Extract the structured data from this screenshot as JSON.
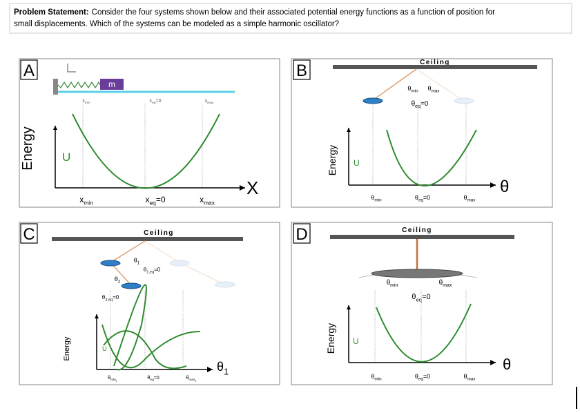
{
  "problem": {
    "lead": "Problem Statement:",
    "line1": "Consider the four systems shown below and their associated potential energy functions as a function of position for",
    "line2": "small displacements. Which of the systems can be modeled as a simple harmonic oscillator?"
  },
  "panels": [
    {
      "letter": "A",
      "mass": "m",
      "energy_axis": "Energy",
      "curve": "U",
      "position_axis": {
        "symbol": "X"
      },
      "diagram_labels": [
        {
          "symbol": "x",
          "sub": "min"
        },
        {
          "symbol": "x",
          "sub": "eq",
          "rest": "=0"
        },
        {
          "symbol": "x",
          "sub": "max"
        }
      ],
      "axis_labels": [
        {
          "symbol": "x",
          "sub": "min"
        },
        {
          "symbol": "x",
          "sub": "eq",
          "rest": "=0"
        },
        {
          "symbol": "x",
          "sub": "max"
        }
      ]
    },
    {
      "letter": "B",
      "ceiling": "Ceiling",
      "energy_axis": "Energy",
      "curve": "U",
      "position_axis": {
        "symbol": "θ"
      },
      "diagram_labels": [
        {
          "symbol": "θ",
          "sub": "min"
        },
        {
          "symbol": "θ",
          "sub": "max"
        },
        {
          "symbol": "θ",
          "sub": "eq",
          "rest": "=0"
        }
      ],
      "axis_labels": [
        {
          "symbol": "θ",
          "sub": "min"
        },
        {
          "symbol": "θ",
          "sub": "eq",
          "rest": "=0"
        },
        {
          "symbol": "θ",
          "sub": "max"
        }
      ]
    },
    {
      "letter": "C",
      "ceiling": "Ceiling",
      "energy_axis": "Energy",
      "curve": "U",
      "position_axis": {
        "symbol": "θ",
        "sub": "1"
      },
      "diagram_labels": [
        {
          "symbol": "θ",
          "sub": "1"
        },
        {
          "symbol": "θ",
          "sub": "1,eq",
          "rest": "=0"
        },
        {
          "symbol": "θ",
          "sub": "2"
        },
        {
          "symbol": "θ",
          "sub": "2,eq",
          "rest": "=0"
        }
      ],
      "axis_labels": [
        {
          "symbol": "θ",
          "sub": "min",
          "sub2": "1"
        },
        {
          "symbol": "θ",
          "sub": "eq",
          "rest": "=0"
        },
        {
          "symbol": "θ",
          "sub": "max",
          "sub2": "1"
        }
      ]
    },
    {
      "letter": "D",
      "ceiling": "Ceiling",
      "energy_axis": "Energy",
      "curve": "U",
      "position_axis": {
        "symbol": "θ"
      },
      "diagram_labels": [
        {
          "symbol": "θ",
          "sub": "min"
        },
        {
          "symbol": "θ",
          "sub": "max"
        },
        {
          "symbol": "θ",
          "sub": "eq",
          "rest": "=0"
        }
      ],
      "axis_labels": [
        {
          "symbol": "θ",
          "sub": "min"
        },
        {
          "symbol": "θ",
          "sub": "eq",
          "rest": "=0"
        },
        {
          "symbol": "θ",
          "sub": "max"
        }
      ]
    }
  ]
}
